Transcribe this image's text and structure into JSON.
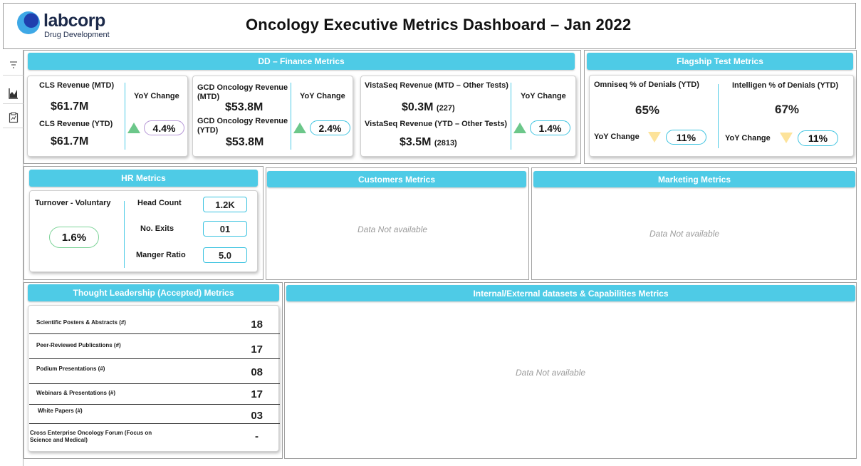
{
  "header": {
    "logo_name": "labcorp",
    "logo_sub": "Drug Development",
    "title": "Oncology Executive Metrics Dashboard – Jan 2022"
  },
  "toolbar": {
    "icons": [
      "filter-icon",
      "chart-icon",
      "report-icon"
    ]
  },
  "finance": {
    "title": "DD – Finance Metrics",
    "yoy_label": "YoY Change",
    "cls": {
      "mtd_label": "CLS Revenue (MTD)",
      "mtd_value": "$61.7M",
      "ytd_label": "CLS Revenue (YTD)",
      "ytd_value": "$61.7M",
      "yoy": "4.4%"
    },
    "gcd": {
      "mtd_label": "GCD Oncology Revenue (MTD)",
      "mtd_value": "$53.8M",
      "ytd_label": "GCD Oncology Revenue (YTD)",
      "ytd_value": "$53.8M",
      "yoy": "2.4%"
    },
    "vistaseq": {
      "mtd_label": "VistaSeq Revenue (MTD – Other Tests)",
      "mtd_value": "$0.3M",
      "mtd_count": "(227)",
      "ytd_label": "VistaSeq Revenue (YTD – Other Tests)",
      "ytd_value": "$3.5M",
      "ytd_count": "(2813)",
      "yoy": "1.4%"
    }
  },
  "flagship": {
    "title": "Flagship Test Metrics",
    "omniseq": {
      "label": "Omniseq % of Denials (YTD)",
      "value": "65%",
      "yoy_label": "YoY Change",
      "yoy": "11%"
    },
    "intelligen": {
      "label": "Intelligen % of Denials (YTD)",
      "value": "67%",
      "yoy_label": "YoY Change",
      "yoy": "11%"
    }
  },
  "hr": {
    "title": "HR Metrics",
    "turnover_label": "Turnover - Voluntary",
    "turnover_value": "1.6%",
    "headcount_label": "Head Count",
    "headcount_value": "1.2K",
    "exits_label": "No. Exits",
    "exits_value": "01",
    "ratio_label": "Manger Ratio",
    "ratio_value": "5.0"
  },
  "customers": {
    "title": "Customers Metrics",
    "empty": "Data Not available"
  },
  "marketing": {
    "title": "Marketing Metrics",
    "empty": "Data Not available"
  },
  "thought_leadership": {
    "title": "Thought Leadership (Accepted) Metrics",
    "rows": [
      {
        "label": "Scientific  Posters & Abstracts (#)",
        "value": "18"
      },
      {
        "label": "Peer-Reviewed Publications (#)",
        "value": "17"
      },
      {
        "label": "Podium Presentations (#)",
        "value": "08"
      },
      {
        "label": "Webinars & Presentations (#)",
        "value": "17"
      },
      {
        "label": "White Papers (#)",
        "value": "03"
      },
      {
        "label": "Cross Enterprise Oncology Forum (Focus on Science and Medical)",
        "value": "-"
      }
    ]
  },
  "datasets": {
    "title": "Internal/External datasets & Capabilities Metrics",
    "empty": "Data Not available"
  },
  "colors": {
    "accent": "#4ecbe6",
    "up": "#6cc78a",
    "down": "#fde39a",
    "pill_purple": "#b596d6",
    "pill_green": "#7fd49a"
  }
}
